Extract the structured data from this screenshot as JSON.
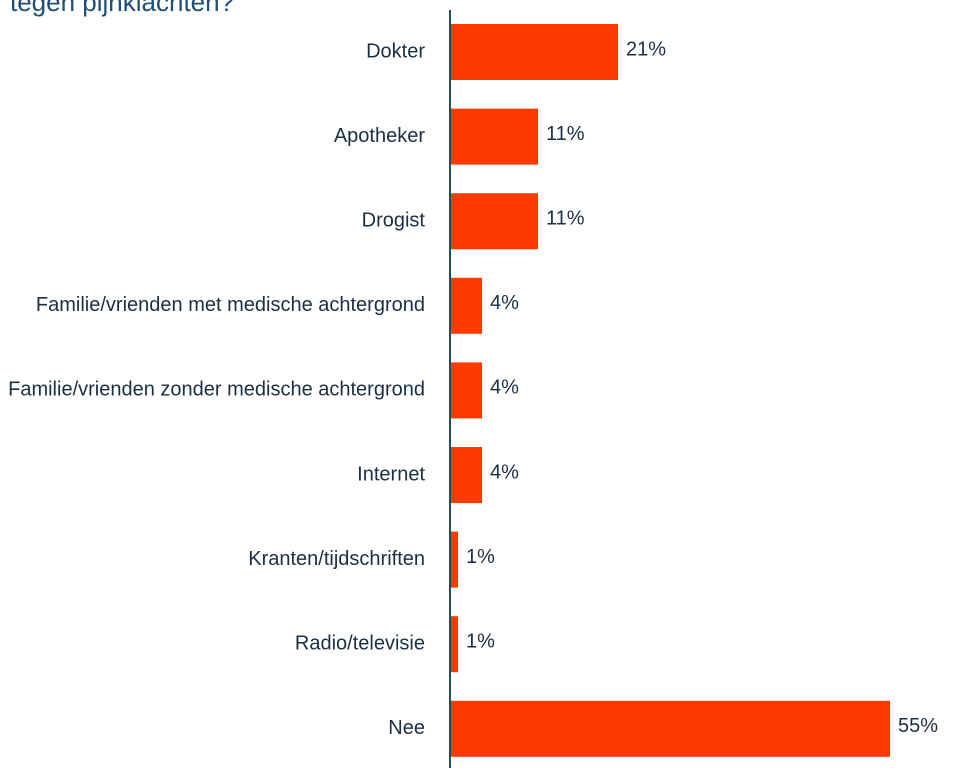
{
  "chart_data": {
    "type": "bar",
    "orientation": "horizontal",
    "title": "tegen pijnklachten?",
    "categories": [
      "Dokter",
      "Apotheker",
      "Drogist",
      "Familie/vrienden met medische achtergrond",
      "Familie/vrienden zonder medische achtergrond",
      "Internet",
      "Kranten/tijdschriften",
      "Radio/televisie",
      "Nee"
    ],
    "values": [
      21,
      11,
      11,
      4,
      4,
      4,
      1,
      1,
      55
    ],
    "value_labels": [
      "21%",
      "11%",
      "11%",
      "4%",
      "4%",
      "4%",
      "1%",
      "1%",
      "55%"
    ],
    "color": "#ff3a00",
    "xlim": [
      0,
      55
    ]
  }
}
